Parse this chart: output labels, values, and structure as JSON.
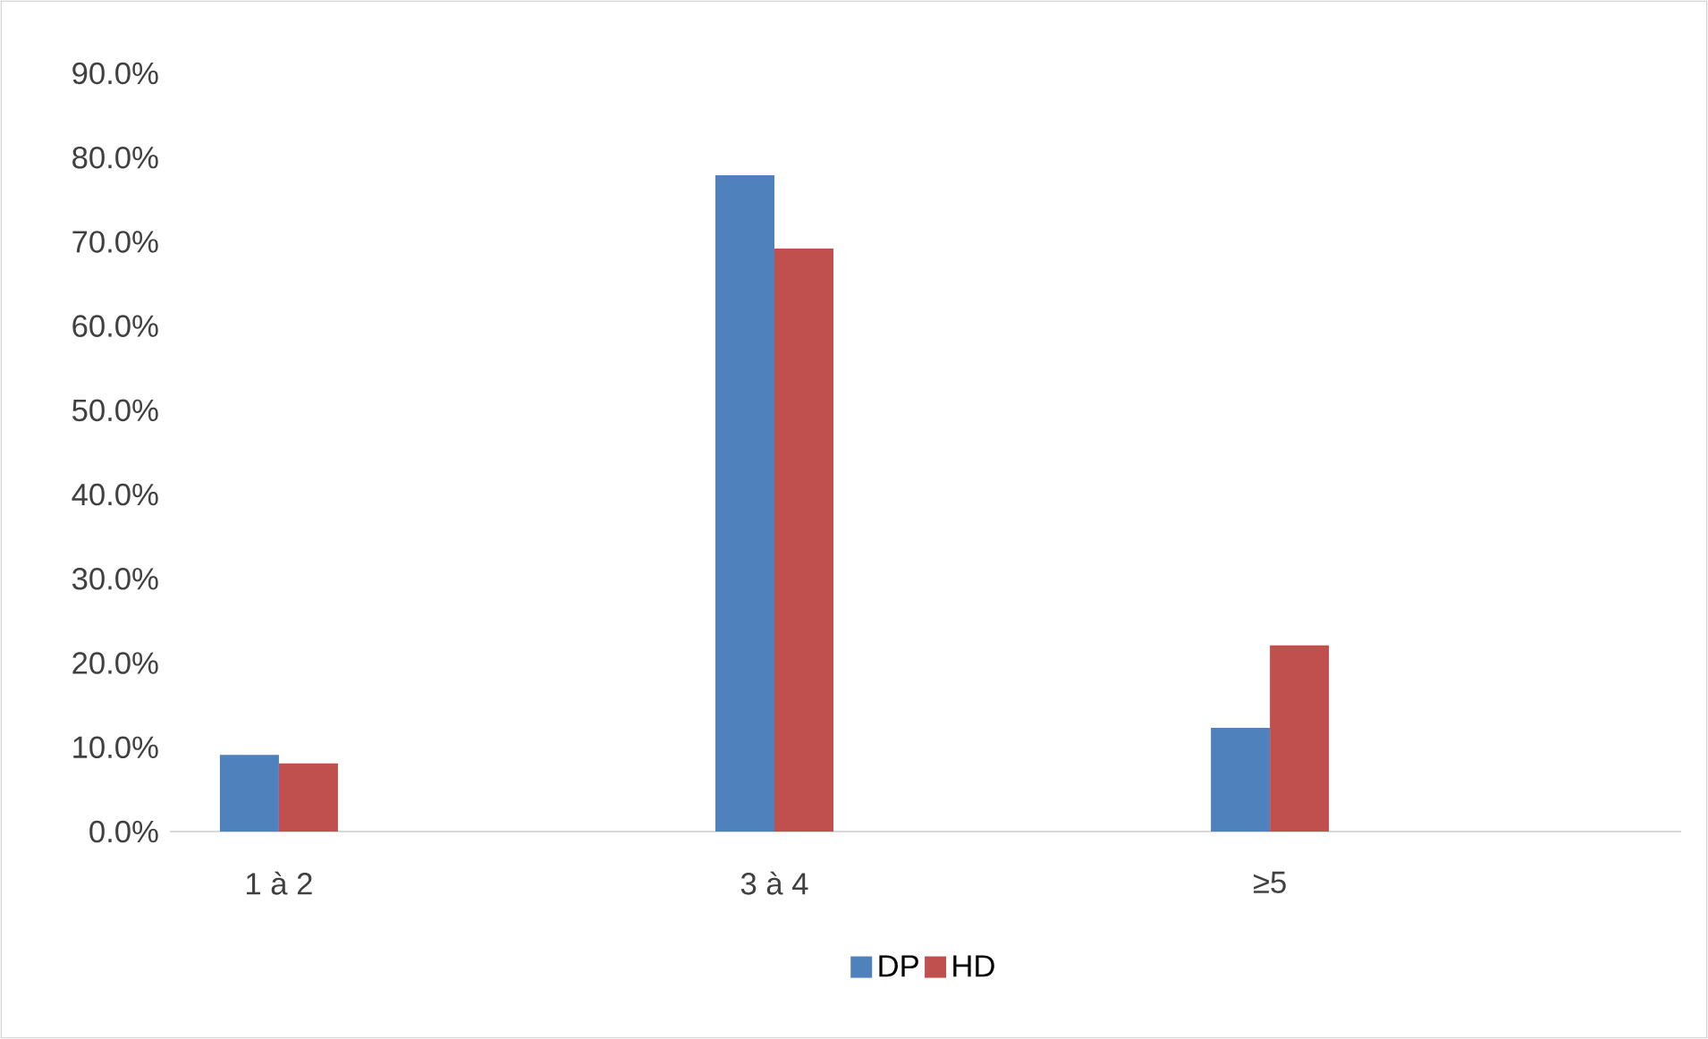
{
  "chart_data": {
    "type": "bar",
    "categories": [
      "1 à 2",
      "3 à 4",
      "≥5"
    ],
    "series": [
      {
        "name": "DP",
        "color": "#4f81bd",
        "values": [
          9.1,
          77.9,
          12.3
        ]
      },
      {
        "name": "HD",
        "color": "#c0504d",
        "values": [
          8.1,
          69.2,
          22.1
        ]
      }
    ],
    "ylim": [
      0,
      90
    ],
    "yticks": [
      {
        "value": 0,
        "label": "0.0%"
      },
      {
        "value": 10,
        "label": "10.0%"
      },
      {
        "value": 20,
        "label": "20.0%"
      },
      {
        "value": 30,
        "label": "30.0%"
      },
      {
        "value": 40,
        "label": "40.0%"
      },
      {
        "value": 50,
        "label": "50.0%"
      },
      {
        "value": 60,
        "label": "60.0%"
      },
      {
        "value": 70,
        "label": "70.0%"
      },
      {
        "value": 80,
        "label": "80.0%"
      },
      {
        "value": 90,
        "label": "90.0%"
      }
    ],
    "legend": "bottom"
  }
}
